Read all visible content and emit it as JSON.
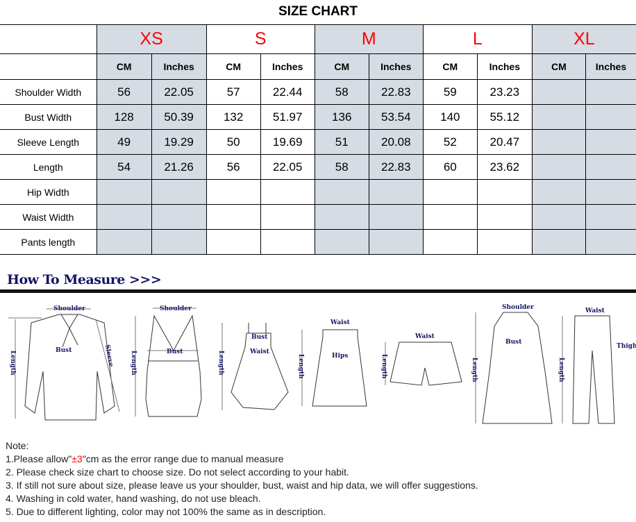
{
  "title": "SIZE CHART",
  "sizes": [
    "XS",
    "S",
    "M",
    "L",
    "XL"
  ],
  "units": [
    "CM",
    "Inches"
  ],
  "rows": [
    {
      "label": "Shoulder Width",
      "values": [
        "56",
        "22.05",
        "57",
        "22.44",
        "58",
        "22.83",
        "59",
        "23.23",
        "",
        ""
      ]
    },
    {
      "label": "Bust Width",
      "values": [
        "128",
        "50.39",
        "132",
        "51.97",
        "136",
        "53.54",
        "140",
        "55.12",
        "",
        ""
      ]
    },
    {
      "label": "Sleeve Length",
      "values": [
        "49",
        "19.29",
        "50",
        "19.69",
        "51",
        "20.08",
        "52",
        "20.47",
        "",
        ""
      ]
    },
    {
      "label": "Length",
      "values": [
        "54",
        "21.26",
        "56",
        "22.05",
        "58",
        "22.83",
        "60",
        "23.62",
        "",
        ""
      ]
    },
    {
      "label": "Hip Width",
      "values": [
        "",
        "",
        "",
        "",
        "",
        "",
        "",
        "",
        "",
        ""
      ]
    },
    {
      "label": "Waist Width",
      "values": [
        "",
        "",
        "",
        "",
        "",
        "",
        "",
        "",
        "",
        ""
      ]
    },
    {
      "label": "Pants length",
      "values": [
        "",
        "",
        "",
        "",
        "",
        "",
        "",
        "",
        "",
        ""
      ]
    }
  ],
  "colors": {
    "size_label": "#ff0000",
    "shaded_column": "#d6dce4",
    "measure_title": "#141464"
  },
  "measure": {
    "title": "How To Measure >>>",
    "labels": {
      "shoulder": "Shoulder",
      "bust": "Bust",
      "sleeve": "Sleeve",
      "length": "Length",
      "waist": "Waist",
      "hips": "Hips",
      "thigh": "Thigh"
    }
  },
  "notes": {
    "heading": "Note:",
    "n1_pre": "1.Please allow\"",
    "n1_red": "±3",
    "n1_post": "\"cm as the error range due to manual measure",
    "items": [
      "2. Please check size chart to choose size. Do not select according to your habit.",
      "3. If still not sure about size, please leave us your shoulder, bust, waist and hip data, we will offer suggestions.",
      "4. Washing in cold water, hand washing, do not use bleach.",
      "5. Due to different lighting, color may not 100% the same as in description."
    ]
  }
}
